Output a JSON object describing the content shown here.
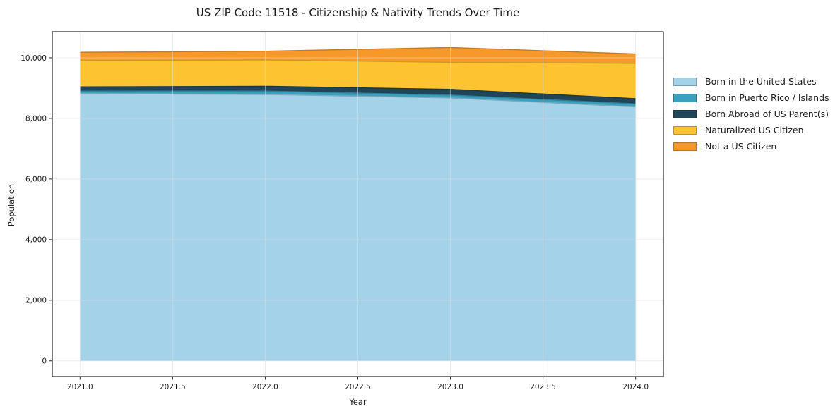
{
  "chart_data": {
    "type": "area",
    "stacked": true,
    "title": "US ZIP Code 11518 - Citizenship & Nativity Trends Over Time",
    "xlabel": "Year",
    "ylabel": "Population",
    "x": [
      2021,
      2022,
      2023,
      2024
    ],
    "series": [
      {
        "name": "Born in the United States",
        "color": "#a4d3e9",
        "values": [
          8820,
          8790,
          8675,
          8380
        ]
      },
      {
        "name": "Born in Puerto Rico / Islands",
        "color": "#39a0bf",
        "values": [
          80,
          110,
          95,
          100
        ]
      },
      {
        "name": "Born Abroad of US Parent(s)",
        "color": "#1f4557",
        "values": [
          140,
          160,
          190,
          170
        ]
      },
      {
        "name": "Naturalized US Citizen",
        "color": "#fdc330",
        "values": [
          870,
          870,
          890,
          1165
        ]
      },
      {
        "name": "Not a US Citizen",
        "color": "#f6992a",
        "values": [
          270,
          285,
          490,
          310
        ]
      }
    ],
    "totals": [
      10180,
      10215,
      10340,
      10125
    ],
    "xlim": [
      2020.85,
      2024.15
    ],
    "ylim": [
      -517,
      10860
    ],
    "xticks": {
      "values": [
        2021.0,
        2021.5,
        2022.0,
        2022.5,
        2023.0,
        2023.5,
        2024.0
      ],
      "labels": [
        "2021.0",
        "2021.5",
        "2022.0",
        "2022.5",
        "2023.0",
        "2023.5",
        "2024.0"
      ]
    },
    "yticks": {
      "values": [
        0,
        2000,
        4000,
        6000,
        8000,
        10000
      ],
      "labels": [
        "0",
        "2,000",
        "4,000",
        "6,000",
        "8,000",
        "10,000"
      ]
    },
    "grid": true,
    "legend_position": "right-outside",
    "colors": {
      "spine": "#262626",
      "gridline": "#dcdcdc",
      "text": "#1a1a1a",
      "background": "#ffffff"
    }
  }
}
